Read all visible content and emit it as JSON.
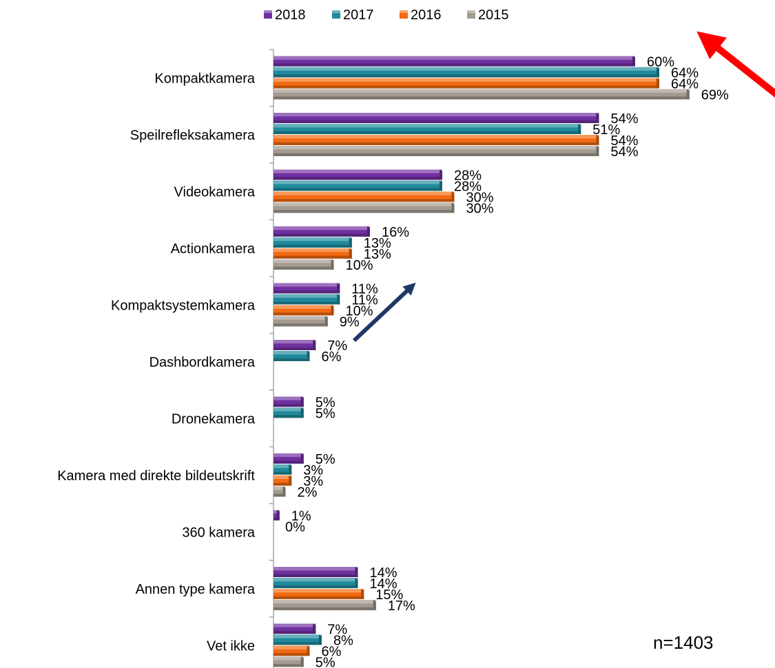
{
  "chart_data": {
    "type": "bar",
    "orientation": "horizontal",
    "categories": [
      "Kompaktkamera",
      "Speilrefleksakamera",
      "Videokamera",
      "Actionkamera",
      "Kompaktsystemkamera",
      "Dashbordkamera",
      "Dronekamera",
      "Kamera med direkte bildeutskrift",
      "360 kamera",
      "Annen type kamera",
      "Vet ikke"
    ],
    "series": [
      {
        "name": "2018",
        "color": "#7030A0",
        "values": [
          60,
          54,
          28,
          16,
          11,
          7,
          5,
          5,
          1,
          14,
          7
        ],
        "labels": [
          "60%",
          "54%",
          "28%",
          "16%",
          "11%",
          "7%",
          "5%",
          "5%",
          "1%",
          "14%",
          "7%"
        ]
      },
      {
        "name": "2017",
        "color": "#1F8A9C",
        "values": [
          64,
          51,
          28,
          13,
          11,
          6,
          5,
          3,
          0,
          14,
          8
        ],
        "labels": [
          "64%",
          "51%",
          "28%",
          "13%",
          "11%",
          "6%",
          "5%",
          "3%",
          "0%",
          "14%",
          "8%"
        ]
      },
      {
        "name": "2016",
        "color": "#F26A10",
        "values": [
          64,
          54,
          30,
          13,
          10,
          null,
          null,
          3,
          null,
          15,
          6
        ],
        "labels": [
          "64%",
          "54%",
          "30%",
          "13%",
          "10%",
          null,
          null,
          "3%",
          null,
          "15%",
          "6%"
        ]
      },
      {
        "name": "2015",
        "color": "#A39A90",
        "values": [
          69,
          54,
          30,
          10,
          9,
          null,
          null,
          2,
          null,
          17,
          5
        ],
        "labels": [
          "69%",
          "54%",
          "30%",
          "10%",
          "9%",
          null,
          null,
          "2%",
          null,
          "17%",
          "5%"
        ]
      }
    ],
    "xlim": [
      0,
      70
    ],
    "legend": {
      "position": "top",
      "entries": [
        "2018",
        "2017",
        "2016",
        "2015"
      ]
    },
    "annotations": {
      "note": "n=1403",
      "arrows": [
        {
          "name": "red-arrow",
          "color": "#FF0000",
          "direction": "up-left",
          "near": "Kompaktkamera"
        },
        {
          "name": "navy-arrow",
          "color": "#1F3864",
          "direction": "up-right",
          "near": "Kompaktsystemkamera"
        }
      ]
    },
    "grid": false
  }
}
